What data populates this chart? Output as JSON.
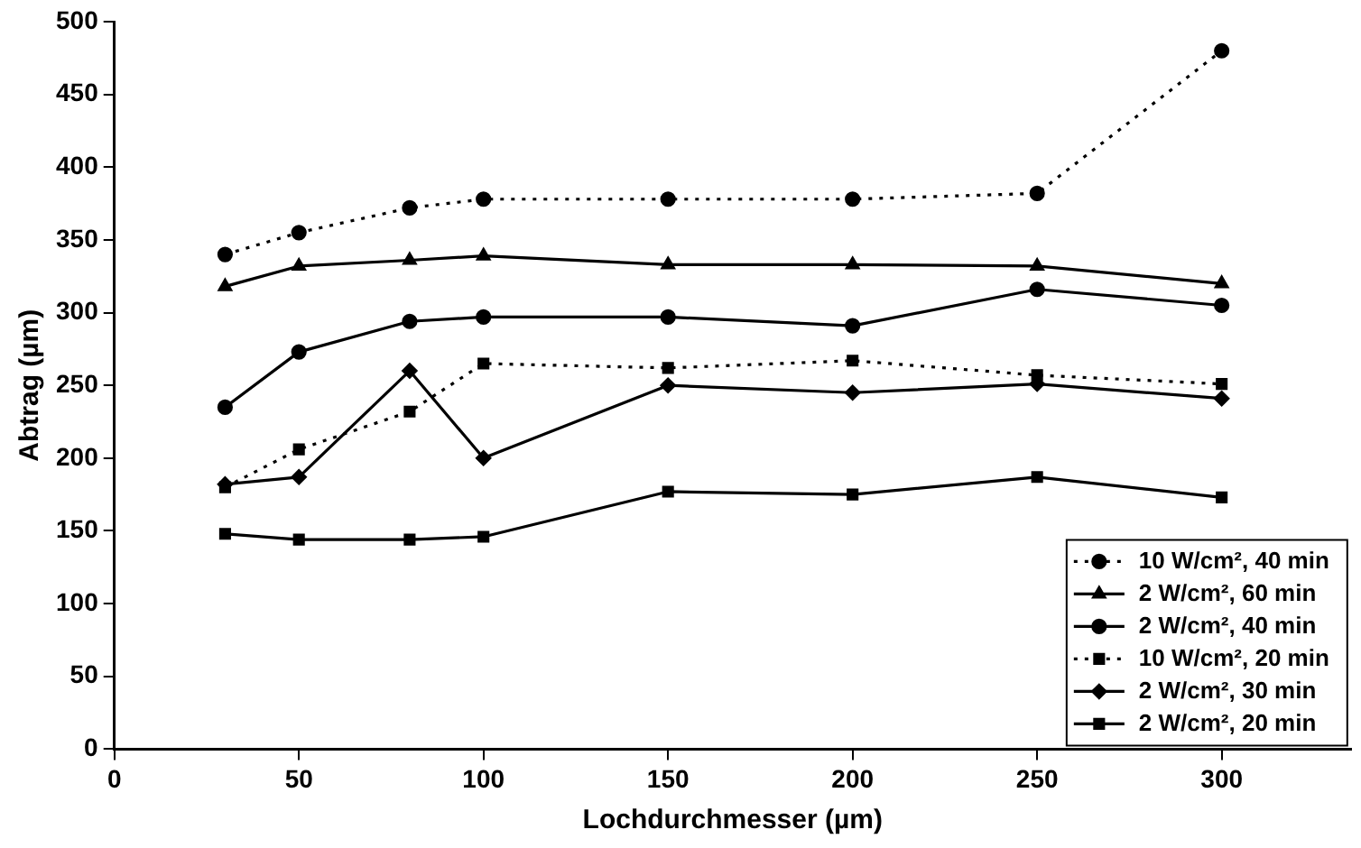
{
  "chart_data": {
    "type": "line",
    "xlabel": "Lochdurchmesser (µm)",
    "ylabel": "Abtrag (µm)",
    "x": [
      30,
      50,
      80,
      100,
      150,
      200,
      250,
      300
    ],
    "xlim": [
      0,
      335
    ],
    "xticks": [
      0,
      50,
      100,
      150,
      200,
      250,
      300
    ],
    "ylim": [
      0,
      500
    ],
    "yticks": [
      0,
      50,
      100,
      150,
      200,
      250,
      300,
      350,
      400,
      450,
      500
    ],
    "grid": false,
    "legend": "bottom right",
    "series": [
      {
        "name": "10 W/cm², 40 min",
        "color": "#000000",
        "marker": "circle",
        "line_style": "dotted",
        "values": [
          340,
          355,
          372,
          378,
          378,
          378,
          382,
          480
        ]
      },
      {
        "name": "2 W/cm², 60 min",
        "color": "#000000",
        "marker": "triangle",
        "line_style": "solid",
        "values": [
          318,
          332,
          336,
          339,
          333,
          333,
          332,
          320
        ]
      },
      {
        "name": "2 W/cm², 40 min",
        "color": "#000000",
        "marker": "circle",
        "line_style": "solid",
        "values": [
          235,
          273,
          294,
          297,
          297,
          291,
          316,
          305
        ]
      },
      {
        "name": "10 W/cm², 20 min",
        "color": "#000000",
        "marker": "square",
        "line_style": "dotted",
        "values": [
          180,
          206,
          232,
          265,
          262,
          267,
          257,
          251
        ]
      },
      {
        "name": "2 W/cm², 30 min",
        "color": "#000000",
        "marker": "diamond",
        "line_style": "solid",
        "values": [
          182,
          187,
          260,
          200,
          250,
          245,
          251,
          241
        ]
      },
      {
        "name": "2 W/cm², 20 min",
        "color": "#000000",
        "marker": "square",
        "line_style": "solid",
        "values": [
          148,
          144,
          144,
          146,
          177,
          175,
          187,
          173
        ]
      }
    ]
  }
}
